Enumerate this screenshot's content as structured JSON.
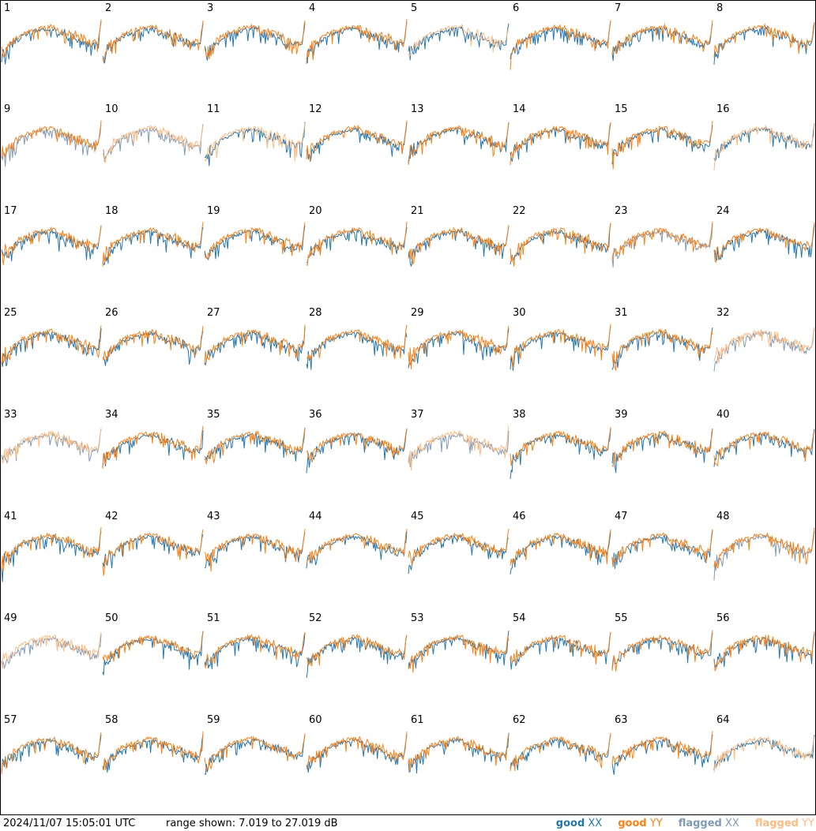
{
  "chart_data": {
    "type": "line",
    "layout": "small-multiples-grid",
    "grid_rows": 8,
    "grid_cols": 8,
    "ylim": [
      7.019,
      27.019
    ],
    "yunit": "dB",
    "panels": [
      {
        "label": "1",
        "xx": "good",
        "yy": "good"
      },
      {
        "label": "2",
        "xx": "good",
        "yy": "good"
      },
      {
        "label": "3",
        "xx": "good",
        "yy": "good"
      },
      {
        "label": "4",
        "xx": "good",
        "yy": "good"
      },
      {
        "label": "5",
        "xx": "good",
        "yy": "flagged"
      },
      {
        "label": "6",
        "xx": "good",
        "yy": "good"
      },
      {
        "label": "7",
        "xx": "good",
        "yy": "good"
      },
      {
        "label": "8",
        "xx": "good",
        "yy": "good"
      },
      {
        "label": "9",
        "xx": "flagged",
        "yy": "good"
      },
      {
        "label": "10",
        "xx": "flagged",
        "yy": "flagged"
      },
      {
        "label": "11",
        "xx": "good",
        "yy": "flagged"
      },
      {
        "label": "12",
        "xx": "good",
        "yy": "good"
      },
      {
        "label": "13",
        "xx": "good",
        "yy": "good"
      },
      {
        "label": "14",
        "xx": "good",
        "yy": "good"
      },
      {
        "label": "15",
        "xx": "good",
        "yy": "good"
      },
      {
        "label": "16",
        "xx": "good",
        "yy": "flagged"
      },
      {
        "label": "17",
        "xx": "good",
        "yy": "good"
      },
      {
        "label": "18",
        "xx": "good",
        "yy": "good"
      },
      {
        "label": "19",
        "xx": "good",
        "yy": "good"
      },
      {
        "label": "20",
        "xx": "good",
        "yy": "good"
      },
      {
        "label": "21",
        "xx": "good",
        "yy": "good"
      },
      {
        "label": "22",
        "xx": "good",
        "yy": "good"
      },
      {
        "label": "23",
        "xx": "flagged",
        "yy": "good"
      },
      {
        "label": "24",
        "xx": "good",
        "yy": "good"
      },
      {
        "label": "25",
        "xx": "good",
        "yy": "good"
      },
      {
        "label": "26",
        "xx": "good",
        "yy": "good"
      },
      {
        "label": "27",
        "xx": "good",
        "yy": "good"
      },
      {
        "label": "28",
        "xx": "good",
        "yy": "good"
      },
      {
        "label": "29",
        "xx": "good",
        "yy": "good"
      },
      {
        "label": "30",
        "xx": "good",
        "yy": "good"
      },
      {
        "label": "31",
        "xx": "good",
        "yy": "good"
      },
      {
        "label": "32",
        "xx": "flagged",
        "yy": "flagged"
      },
      {
        "label": "33",
        "xx": "flagged",
        "yy": "flagged"
      },
      {
        "label": "34",
        "xx": "good",
        "yy": "good"
      },
      {
        "label": "35",
        "xx": "good",
        "yy": "good"
      },
      {
        "label": "36",
        "xx": "good",
        "yy": "good"
      },
      {
        "label": "37",
        "xx": "flagged",
        "yy": "flagged"
      },
      {
        "label": "38",
        "xx": "good",
        "yy": "good"
      },
      {
        "label": "39",
        "xx": "good",
        "yy": "good"
      },
      {
        "label": "40",
        "xx": "good",
        "yy": "good"
      },
      {
        "label": "41",
        "xx": "good",
        "yy": "good"
      },
      {
        "label": "42",
        "xx": "good",
        "yy": "good"
      },
      {
        "label": "43",
        "xx": "good",
        "yy": "good"
      },
      {
        "label": "44",
        "xx": "good",
        "yy": "good"
      },
      {
        "label": "45",
        "xx": "good",
        "yy": "good"
      },
      {
        "label": "46",
        "xx": "good",
        "yy": "good"
      },
      {
        "label": "47",
        "xx": "good",
        "yy": "good"
      },
      {
        "label": "48",
        "xx": "flagged",
        "yy": "good"
      },
      {
        "label": "49",
        "xx": "flagged",
        "yy": "flagged"
      },
      {
        "label": "50",
        "xx": "good",
        "yy": "good"
      },
      {
        "label": "51",
        "xx": "good",
        "yy": "good"
      },
      {
        "label": "52",
        "xx": "good",
        "yy": "good"
      },
      {
        "label": "53",
        "xx": "good",
        "yy": "good"
      },
      {
        "label": "54",
        "xx": "good",
        "yy": "good"
      },
      {
        "label": "55",
        "xx": "good",
        "yy": "good"
      },
      {
        "label": "56",
        "xx": "good",
        "yy": "good"
      },
      {
        "label": "57",
        "xx": "good",
        "yy": "good"
      },
      {
        "label": "58",
        "xx": "good",
        "yy": "good"
      },
      {
        "label": "59",
        "xx": "good",
        "yy": "good"
      },
      {
        "label": "60",
        "xx": "good",
        "yy": "good"
      },
      {
        "label": "61",
        "xx": "good",
        "yy": "good"
      },
      {
        "label": "62",
        "xx": "good",
        "yy": "good"
      },
      {
        "label": "63",
        "xx": "good",
        "yy": "good"
      },
      {
        "label": "64",
        "xx": "good",
        "yy": "flagged"
      }
    ]
  },
  "footer": {
    "timestamp": "2024/11/07 15:05:01 UTC",
    "range_text": "range shown: 7.019 to 27.019 dB"
  },
  "legend": [
    {
      "word": "good",
      "pol": "XX",
      "color": "#1f77b4"
    },
    {
      "word": "good",
      "pol": "YY",
      "color": "#ff7f0e"
    },
    {
      "word": "flagged",
      "pol": "XX",
      "color": "#7f9ab8"
    },
    {
      "word": "flagged",
      "pol": "YY",
      "color": "#ffbb7f"
    }
  ],
  "colors": {
    "good_xx": "#1f77b4",
    "good_yy": "#ff7f0e",
    "flagged_xx": "#7f9ab8",
    "flagged_yy": "#ffbb7f"
  }
}
